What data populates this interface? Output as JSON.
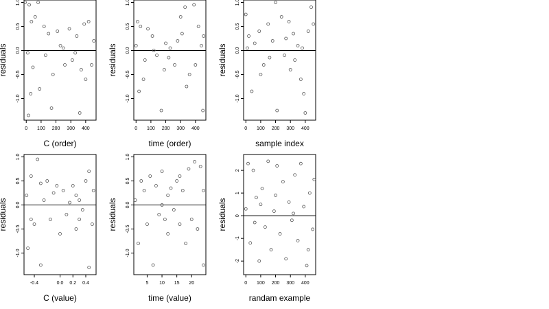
{
  "figure": {
    "background": "#ffffff",
    "point_color": "#555555",
    "frame_color": "#000000"
  },
  "chart_data": [
    {
      "type": "scatter",
      "title": "",
      "xlabel": "C (order)",
      "ylabel": "residuals",
      "xlim": [
        -15,
        470
      ],
      "ylim": [
        -1.45,
        1.05
      ],
      "xticks": [
        0,
        100,
        200,
        300,
        400
      ],
      "xtick_labels": [
        "0",
        "100",
        "200",
        "300",
        "400"
      ],
      "yticks": [
        -1.0,
        -0.5,
        0.0,
        0.5,
        1.0
      ],
      "ytick_labels": [
        "-1.0",
        "-0.5",
        "0.0",
        "0.5",
        "1.0"
      ],
      "hline": 0,
      "grid": false,
      "points": [
        [
          -8,
          1.0
        ],
        [
          20,
          0.95
        ],
        [
          35,
          0.6
        ],
        [
          60,
          0.7
        ],
        [
          80,
          1.0
        ],
        [
          15,
          -1.35
        ],
        [
          30,
          -0.9
        ],
        [
          90,
          -0.8
        ],
        [
          120,
          0.5
        ],
        [
          150,
          0.35
        ],
        [
          170,
          -1.2
        ],
        [
          180,
          -0.5
        ],
        [
          210,
          0.4
        ],
        [
          230,
          0.1
        ],
        [
          260,
          -0.3
        ],
        [
          290,
          0.45
        ],
        [
          310,
          -0.2
        ],
        [
          340,
          0.3
        ],
        [
          370,
          -0.4
        ],
        [
          390,
          0.55
        ],
        [
          420,
          0.6
        ],
        [
          440,
          -0.3
        ],
        [
          455,
          0.2
        ],
        [
          360,
          -1.3
        ],
        [
          10,
          -0.05
        ],
        [
          45,
          -0.35
        ],
        [
          250,
          0.05
        ],
        [
          400,
          -0.6
        ],
        [
          130,
          -0.1
        ],
        [
          330,
          -0.05
        ]
      ]
    },
    {
      "type": "scatter",
      "title": "",
      "xlabel": "time (order)",
      "ylabel": "residuals",
      "xlim": [
        -15,
        470
      ],
      "ylim": [
        -1.45,
        1.05
      ],
      "xticks": [
        0,
        100,
        200,
        300,
        400
      ],
      "xtick_labels": [
        "0",
        "100",
        "200",
        "300",
        "400"
      ],
      "yticks": [
        -1.0,
        -0.5,
        0.0,
        0.5,
        1.0
      ],
      "ytick_labels": [
        "-1.0",
        "-0.5",
        "0.0",
        "0.5",
        "1.0"
      ],
      "hline": 0,
      "grid": false,
      "points": [
        [
          10,
          0.6
        ],
        [
          30,
          0.5
        ],
        [
          60,
          -0.2
        ],
        [
          80,
          0.45
        ],
        [
          110,
          0.3
        ],
        [
          140,
          -0.1
        ],
        [
          170,
          -1.25
        ],
        [
          200,
          0.15
        ],
        [
          230,
          0.05
        ],
        [
          260,
          -0.3
        ],
        [
          300,
          0.7
        ],
        [
          330,
          0.9
        ],
        [
          360,
          -0.5
        ],
        [
          390,
          0.95
        ],
        [
          420,
          0.5
        ],
        [
          450,
          -1.25
        ],
        [
          455,
          0.3
        ],
        [
          20,
          -0.85
        ],
        [
          50,
          -0.6
        ],
        [
          120,
          0.0
        ],
        [
          220,
          -0.15
        ],
        [
          280,
          0.2
        ],
        [
          340,
          -0.75
        ],
        [
          400,
          -0.3
        ],
        [
          440,
          0.1
        ],
        [
          0,
          0.1
        ],
        [
          190,
          -0.4
        ],
        [
          310,
          0.35
        ]
      ]
    },
    {
      "type": "scatter",
      "title": "",
      "xlabel": "sample index",
      "ylabel": "residuals",
      "xlim": [
        -15,
        470
      ],
      "ylim": [
        -1.45,
        1.05
      ],
      "xticks": [
        0,
        100,
        200,
        300,
        400
      ],
      "xtick_labels": [
        "0",
        "100",
        "200",
        "300",
        "400"
      ],
      "yticks": [
        -1.0,
        -0.5,
        0.0,
        0.5,
        1.0
      ],
      "ytick_labels": [
        "-1.0",
        "-0.5",
        "0.0",
        "0.5",
        "1.0"
      ],
      "hline": 0,
      "grid": false,
      "points": [
        [
          0,
          0.75
        ],
        [
          20,
          0.3
        ],
        [
          40,
          -0.85
        ],
        [
          60,
          0.15
        ],
        [
          90,
          0.4
        ],
        [
          120,
          -0.3
        ],
        [
          150,
          0.55
        ],
        [
          180,
          0.2
        ],
        [
          200,
          1.0
        ],
        [
          210,
          -1.25
        ],
        [
          240,
          0.7
        ],
        [
          260,
          -0.1
        ],
        [
          290,
          0.6
        ],
        [
          320,
          0.35
        ],
        [
          350,
          0.1
        ],
        [
          370,
          -0.6
        ],
        [
          390,
          -0.9
        ],
        [
          400,
          -1.3
        ],
        [
          420,
          0.4
        ],
        [
          440,
          0.9
        ],
        [
          455,
          0.55
        ],
        [
          100,
          -0.5
        ],
        [
          300,
          -0.4
        ],
        [
          330,
          -0.2
        ],
        [
          380,
          0.05
        ],
        [
          10,
          0.05
        ],
        [
          160,
          -0.15
        ],
        [
          270,
          0.25
        ]
      ]
    },
    {
      "type": "scatter",
      "title": "",
      "xlabel": "C (value)",
      "ylabel": "residuals",
      "xlim": [
        -0.56,
        0.56
      ],
      "ylim": [
        -1.45,
        1.05
      ],
      "xticks": [
        -0.4,
        0.0,
        0.2,
        0.4
      ],
      "xtick_labels": [
        "-0.4",
        "0.0",
        "0.2",
        "0.4"
      ],
      "yticks": [
        -1.0,
        -0.5,
        0.0,
        0.5,
        1.0
      ],
      "ytick_labels": [
        "-1.0",
        "-0.5",
        "0.0",
        "0.5",
        "1.0"
      ],
      "hline": 0,
      "grid": false,
      "points": [
        [
          -0.52,
          0.2
        ],
        [
          -0.5,
          -0.9
        ],
        [
          -0.45,
          0.6
        ],
        [
          -0.4,
          -0.4
        ],
        [
          -0.35,
          0.95
        ],
        [
          -0.3,
          0.45
        ],
        [
          -0.3,
          -1.25
        ],
        [
          -0.25,
          0.1
        ],
        [
          -0.2,
          0.5
        ],
        [
          -0.15,
          -0.3
        ],
        [
          -0.1,
          0.25
        ],
        [
          0.0,
          -0.6
        ],
        [
          0.05,
          0.3
        ],
        [
          0.1,
          -0.2
        ],
        [
          0.15,
          0.05
        ],
        [
          0.2,
          0.4
        ],
        [
          0.25,
          -0.5
        ],
        [
          0.3,
          0.1
        ],
        [
          0.35,
          -0.1
        ],
        [
          0.4,
          0.5
        ],
        [
          0.45,
          0.7
        ],
        [
          0.45,
          -1.3
        ],
        [
          0.5,
          -0.4
        ],
        [
          0.52,
          0.3
        ],
        [
          -0.45,
          -0.3
        ],
        [
          -0.05,
          0.4
        ],
        [
          0.25,
          0.2
        ],
        [
          0.3,
          -0.3
        ]
      ]
    },
    {
      "type": "scatter",
      "title": "",
      "xlabel": "time (value)",
      "ylabel": "residuals",
      "xlim": [
        0.5,
        24.8
      ],
      "ylim": [
        -1.45,
        1.05
      ],
      "xticks": [
        5,
        10,
        15,
        20
      ],
      "xtick_labels": [
        "5",
        "10",
        "15",
        "20"
      ],
      "yticks": [
        -1.0,
        -0.5,
        0.0,
        0.5,
        1.0
      ],
      "ytick_labels": [
        "-1.0",
        "-0.5",
        "0.0",
        "0.5",
        "1.0"
      ],
      "hline": 0,
      "grid": false,
      "points": [
        [
          1,
          0.1
        ],
        [
          2,
          -0.8
        ],
        [
          3,
          0.5
        ],
        [
          4,
          0.3
        ],
        [
          5,
          -0.4
        ],
        [
          6,
          0.6
        ],
        [
          7,
          -1.25
        ],
        [
          8,
          0.4
        ],
        [
          9,
          -0.2
        ],
        [
          10,
          0.7
        ],
        [
          11,
          -0.3
        ],
        [
          12,
          0.2
        ],
        [
          12,
          -0.6
        ],
        [
          13,
          0.35
        ],
        [
          14,
          -0.1
        ],
        [
          15,
          0.5
        ],
        [
          16,
          -0.4
        ],
        [
          17,
          0.3
        ],
        [
          18,
          -0.8
        ],
        [
          19,
          0.75
        ],
        [
          20,
          -0.3
        ],
        [
          21,
          0.9
        ],
        [
          22,
          -0.5
        ],
        [
          23,
          0.8
        ],
        [
          24,
          -1.25
        ],
        [
          24,
          0.3
        ],
        [
          10,
          0.0
        ],
        [
          16,
          0.6
        ]
      ]
    },
    {
      "type": "scatter",
      "title": "",
      "xlabel": "randam example",
      "ylabel": "residuals",
      "xlim": [
        -15,
        470
      ],
      "ylim": [
        -2.6,
        2.7
      ],
      "xticks": [
        0,
        100,
        200,
        300,
        400
      ],
      "xtick_labels": [
        "0",
        "100",
        "200",
        "300",
        "400"
      ],
      "yticks": [
        -2,
        -1,
        0,
        1,
        2
      ],
      "ytick_labels": [
        "-2",
        "-1",
        "0",
        "1",
        "2"
      ],
      "hline": 0,
      "grid": false,
      "points": [
        [
          0,
          0.3
        ],
        [
          15,
          2.3
        ],
        [
          30,
          -1.2
        ],
        [
          50,
          2.0
        ],
        [
          70,
          0.8
        ],
        [
          90,
          -2.0
        ],
        [
          110,
          1.2
        ],
        [
          130,
          -0.5
        ],
        [
          150,
          2.4
        ],
        [
          170,
          -1.5
        ],
        [
          190,
          0.2
        ],
        [
          210,
          2.2
        ],
        [
          230,
          -0.8
        ],
        [
          250,
          1.5
        ],
        [
          270,
          -1.9
        ],
        [
          290,
          0.6
        ],
        [
          310,
          -0.2
        ],
        [
          330,
          1.8
        ],
        [
          350,
          -1.1
        ],
        [
          370,
          2.3
        ],
        [
          390,
          0.4
        ],
        [
          410,
          -2.2
        ],
        [
          430,
          1.0
        ],
        [
          450,
          -0.6
        ],
        [
          460,
          1.6
        ],
        [
          60,
          -0.3
        ],
        [
          200,
          0.9
        ],
        [
          320,
          0.1
        ],
        [
          420,
          -1.5
        ],
        [
          100,
          0.5
        ]
      ]
    }
  ]
}
